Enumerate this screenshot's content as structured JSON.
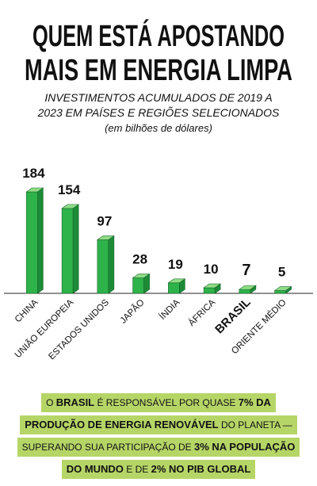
{
  "chart_data": {
    "type": "bar3d",
    "title": [
      "QUEM ESTÁ APOSTANDO",
      "MAIS EM ENERGIA LIMPA"
    ],
    "subtitle": [
      "INVESTIMENTOS ACUMULADOS DE 2019 A",
      "2023 EM PAÍSES E REGIÕES SELECIONADOS",
      "(em bilhões de dólares)"
    ],
    "categories": [
      "CHINA",
      "UNIÃO EUROPEIA",
      "ESTADOS UNIDOS",
      "JAPÃO",
      "ÍNDIA",
      "ÁFRICA",
      "BRASIL",
      "ORIENTE MÉDIO"
    ],
    "values": [
      184,
      154,
      97,
      28,
      19,
      10,
      7,
      5
    ],
    "color": "#2eb24a",
    "highlight": 6
  },
  "footer": {
    "lines": [
      [
        {
          "text": "O "
        },
        {
          "text": "BRASIL",
          "bold": true
        },
        {
          "text": " É RESPONSÁVEL POR QUASE "
        },
        {
          "text": "7% DA",
          "bold": true
        }
      ],
      [
        {
          "text": "PRODUÇÃO DE ENERGIA RENOVÁVEL",
          "bold": true
        },
        {
          "text": " DO PLANETA —"
        }
      ],
      [
        {
          "text": "SUPERANDO SUA PARTICIPAÇÃO DE "
        },
        {
          "text": "3% NA POPULAÇÃO",
          "bold": true
        }
      ],
      [
        {
          "text": "DO MUNDO",
          "bold": true
        },
        {
          "text": " E DE "
        },
        {
          "text": "2% NO PIB GLOBAL",
          "bold": true
        }
      ]
    ],
    "color": "#b6d567"
  }
}
